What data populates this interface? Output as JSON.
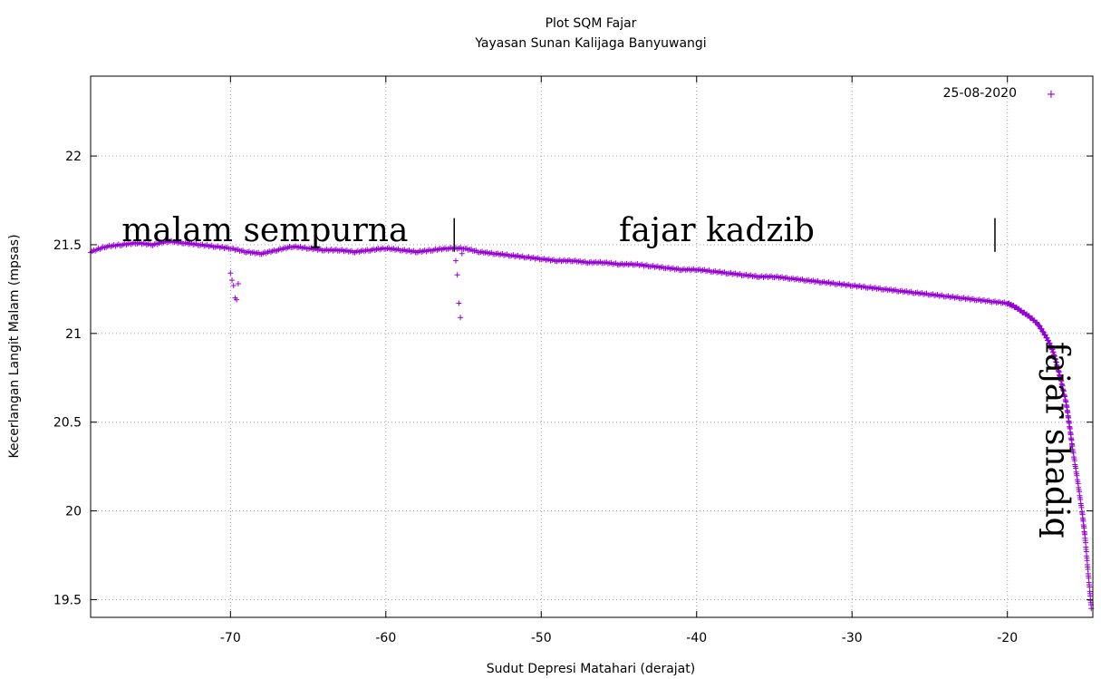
{
  "chart_data": {
    "type": "scatter",
    "title": "Plot SQM Fajar",
    "subtitle": "Yayasan Sunan Kalijaga Banyuwangi",
    "xlabel": "Sudut Depresi Matahari (derajat)",
    "ylabel": "Kecerlangan Langit Malam (mpsas)",
    "xlim": [
      -79,
      -14.5
    ],
    "ylim": [
      19.4,
      22.45
    ],
    "xticks": [
      -70,
      -60,
      -50,
      -40,
      -30,
      -20
    ],
    "yticks": [
      19.5,
      20,
      20.5,
      21,
      21.5,
      22
    ],
    "grid": true,
    "legend_position": "top-right",
    "marker": "+",
    "series": [
      {
        "name": "25-08-2020",
        "color": "#9400d3",
        "main_curve": {
          "x": [
            -79,
            -78,
            -77,
            -76,
            -75,
            -74,
            -73,
            -72,
            -71,
            -70,
            -69,
            -68,
            -67,
            -66,
            -65,
            -64,
            -63,
            -62,
            -61,
            -60,
            -59,
            -58,
            -57,
            -56,
            -55,
            -54,
            -53,
            -52,
            -51,
            -50,
            -49,
            -48,
            -47,
            -46,
            -45,
            -44,
            -43,
            -42,
            -41,
            -40,
            -39,
            -38,
            -37,
            -36,
            -35,
            -34,
            -33,
            -32,
            -31,
            -30,
            -29,
            -28,
            -27,
            -26,
            -25,
            -24,
            -23,
            -22,
            -21,
            -20,
            -19.5,
            -19,
            -18.5,
            -18,
            -17.5,
            -17.2,
            -17,
            -16.8,
            -16.5,
            -16.2,
            -16,
            -15.8,
            -15.5,
            -15.2,
            -15,
            -14.8,
            -14.6
          ],
          "y": [
            21.46,
            21.49,
            21.5,
            21.51,
            21.5,
            21.52,
            21.51,
            21.5,
            21.49,
            21.48,
            21.46,
            21.45,
            21.47,
            21.49,
            21.48,
            21.47,
            21.47,
            21.46,
            21.47,
            21.48,
            21.47,
            21.46,
            21.47,
            21.48,
            21.48,
            21.46,
            21.45,
            21.44,
            21.43,
            21.42,
            21.41,
            21.41,
            21.4,
            21.4,
            21.39,
            21.39,
            21.38,
            21.37,
            21.36,
            21.36,
            21.35,
            21.34,
            21.33,
            21.32,
            21.32,
            21.31,
            21.3,
            21.29,
            21.28,
            21.27,
            21.26,
            21.25,
            21.24,
            21.23,
            21.22,
            21.21,
            21.2,
            21.19,
            21.18,
            21.17,
            21.15,
            21.12,
            21.09,
            21.05,
            20.98,
            20.93,
            20.88,
            20.82,
            20.72,
            20.6,
            20.48,
            20.35,
            20.18,
            20.0,
            19.85,
            19.65,
            19.45
          ]
        },
        "outliers": {
          "x": [
            -70.0,
            -69.9,
            -69.8,
            -69.7,
            -69.6,
            -69.5,
            -55.5,
            -55.4,
            -55.3,
            -55.2,
            -55.1
          ],
          "y": [
            21.34,
            21.3,
            21.27,
            21.2,
            21.19,
            21.28,
            21.41,
            21.33,
            21.17,
            21.09,
            21.45
          ]
        }
      }
    ],
    "annotations": [
      {
        "text": "malam sempurna",
        "x": -77,
        "y": 21.52
      },
      {
        "text": "fajar kadzib",
        "x": -45,
        "y": 21.52
      },
      {
        "text": "fajar shadiq",
        "x": -17.5,
        "y": 20.4,
        "rotation": 90
      }
    ],
    "markers_vertical": [
      {
        "x": -55.6,
        "y_from": 21.46,
        "y_to": 21.65
      },
      {
        "x": -20.8,
        "y_from": 21.46,
        "y_to": 21.65
      }
    ]
  }
}
